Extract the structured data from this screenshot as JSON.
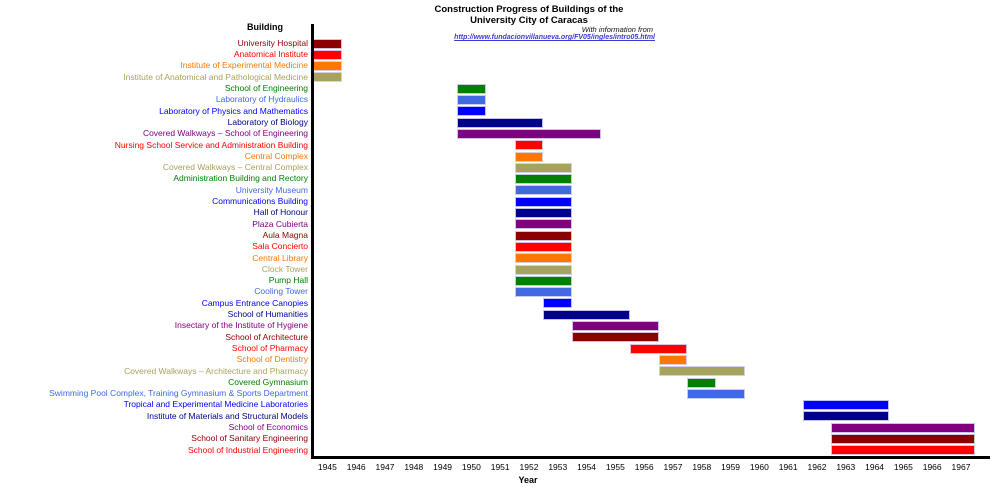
{
  "title": {
    "line1": "Construction Progress of Buildings of the",
    "line2": "University City of Caracas"
  },
  "subtitle": "With information from",
  "source_link": "http://www.fundacionvillanueva.org/FV05/ingles/intro05.html",
  "palette": {
    "darkred": "#8B0000",
    "red": "#FF0000",
    "orange": "#FF7700",
    "khaki": "#A8A25F",
    "green": "#008000",
    "royalblue": "#4169E1",
    "blue": "#0000FF",
    "navy": "#00008B",
    "purple": "#800080"
  },
  "chart_data": {
    "type": "bar",
    "subtype": "gantt",
    "title": "Construction Progress of Buildings of the University City of Caracas",
    "xlabel": "Year",
    "ylabel": "Building",
    "xlim": [
      1944.5,
      1968.0
    ],
    "grid": false,
    "legend": false,
    "xticks": [
      1945,
      1946,
      1947,
      1948,
      1949,
      1950,
      1951,
      1952,
      1953,
      1954,
      1955,
      1956,
      1957,
      1958,
      1959,
      1960,
      1961,
      1962,
      1963,
      1964,
      1965,
      1966,
      1967
    ],
    "rows": [
      {
        "label": "University Hospital",
        "color": "darkred",
        "start": 1945,
        "end": 1945
      },
      {
        "label": "Anatomical Institute",
        "color": "red",
        "start": 1945,
        "end": 1945
      },
      {
        "label": "Institute of Experimental Medicine",
        "color": "orange",
        "start": 1945,
        "end": 1945
      },
      {
        "label": "Institute of Anatomical and Pathological Medicine",
        "color": "khaki",
        "start": 1945,
        "end": 1945
      },
      {
        "label": "School of Engineering",
        "color": "green",
        "start": 1950,
        "end": 1950
      },
      {
        "label": "Laboratory of Hydraulics",
        "color": "royalblue",
        "start": 1950,
        "end": 1950
      },
      {
        "label": "Laboratory of Physics and Mathematics",
        "color": "blue",
        "start": 1950,
        "end": 1950
      },
      {
        "label": "Laboratory of Biology",
        "color": "navy",
        "start": 1950,
        "end": 1952
      },
      {
        "label": "Covered Walkways – School of Engineering",
        "color": "purple",
        "start": 1950,
        "end": 1954
      },
      {
        "label": "Nursing School Service and Administration Building",
        "color": "red",
        "start": 1952,
        "end": 1952
      },
      {
        "label": "Central Complex",
        "color": "orange",
        "start": 1952,
        "end": 1952
      },
      {
        "label": "Covered Walkways – Central Complex",
        "color": "khaki",
        "start": 1952,
        "end": 1953
      },
      {
        "label": "Administration Building and Rectory",
        "color": "green",
        "start": 1952,
        "end": 1953
      },
      {
        "label": "University Museum",
        "color": "royalblue",
        "start": 1952,
        "end": 1953
      },
      {
        "label": "Communications Building",
        "color": "blue",
        "start": 1952,
        "end": 1953
      },
      {
        "label": "Hall of Honour",
        "color": "navy",
        "start": 1952,
        "end": 1953
      },
      {
        "label": "Plaza Cubierta",
        "color": "purple",
        "start": 1952,
        "end": 1953
      },
      {
        "label": "Aula Magna",
        "color": "darkred",
        "start": 1952,
        "end": 1953
      },
      {
        "label": "Sala Concierto",
        "color": "red",
        "start": 1952,
        "end": 1953
      },
      {
        "label": "Central Library",
        "color": "orange",
        "start": 1952,
        "end": 1953
      },
      {
        "label": "Clock Tower",
        "color": "khaki",
        "start": 1952,
        "end": 1953
      },
      {
        "label": "Pump Hall",
        "color": "green",
        "start": 1952,
        "end": 1953
      },
      {
        "label": "Cooling Tower",
        "color": "royalblue",
        "start": 1952,
        "end": 1953
      },
      {
        "label": "Campus Entrance Canopies",
        "color": "blue",
        "start": 1953,
        "end": 1953
      },
      {
        "label": "School of Humanities",
        "color": "navy",
        "start": 1953,
        "end": 1955
      },
      {
        "label": "Insectary of the Institute of Hygiene",
        "color": "purple",
        "start": 1954,
        "end": 1956
      },
      {
        "label": "School of Architecture",
        "color": "darkred",
        "start": 1954,
        "end": 1956
      },
      {
        "label": "School of Pharmacy",
        "color": "red",
        "start": 1956,
        "end": 1957
      },
      {
        "label": "School of Dentistry",
        "color": "orange",
        "start": 1957,
        "end": 1957
      },
      {
        "label": "Covered Walkways – Architecture and Pharmacy",
        "color": "khaki",
        "start": 1957,
        "end": 1959
      },
      {
        "label": "Covered Gymnasium",
        "color": "green",
        "start": 1958,
        "end": 1958
      },
      {
        "label": "Swimming Pool Complex, Training Gymnasium & Sports Department",
        "color": "royalblue",
        "start": 1958,
        "end": 1959
      },
      {
        "label": "Tropical and Experimental Medicine Laboratories",
        "color": "blue",
        "start": 1962,
        "end": 1964
      },
      {
        "label": "Institute of Materials and Structural Models",
        "color": "navy",
        "start": 1962,
        "end": 1964
      },
      {
        "label": "School of Economics",
        "color": "purple",
        "start": 1963,
        "end": 1967
      },
      {
        "label": "School of Sanitary Engineering",
        "color": "darkred",
        "start": 1963,
        "end": 1967
      },
      {
        "label": "School of Industrial Engineering",
        "color": "red",
        "start": 1963,
        "end": 1967
      }
    ]
  }
}
